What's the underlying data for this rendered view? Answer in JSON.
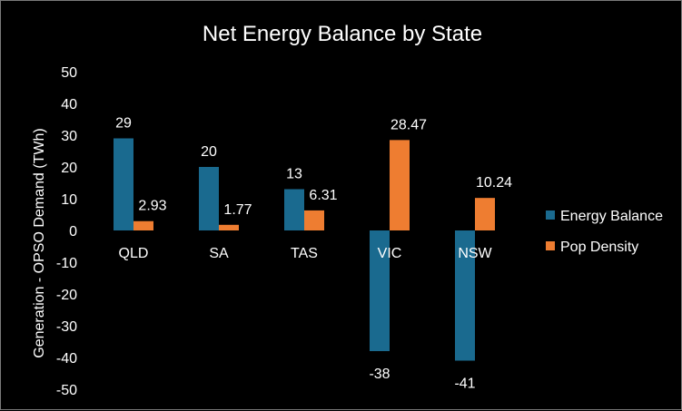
{
  "chart_data": {
    "type": "bar",
    "title": "Net Energy Balance by State",
    "xlabel": "",
    "ylabel": "Generation - OPSO Demand (TWh)",
    "categories": [
      "QLD",
      "SA",
      "TAS",
      "VIC",
      "NSW"
    ],
    "series": [
      {
        "name": "Energy Balance",
        "color": "#1a6a8f",
        "values": [
          29,
          20,
          13,
          -38,
          -41
        ],
        "labels": [
          "29",
          "20",
          "13",
          "-38",
          "-41"
        ]
      },
      {
        "name": "Pop Density",
        "color": "#ee7d31",
        "values": [
          2.93,
          1.77,
          6.31,
          28.47,
          10.24
        ],
        "labels": [
          "2.93",
          "1.77",
          "6.31",
          "28.47",
          "10.24"
        ]
      }
    ],
    "ylim": [
      -50,
      50
    ],
    "yticks": [
      "50",
      "40",
      "30",
      "20",
      "10",
      "0",
      "-10",
      "-20",
      "-30",
      "-40",
      "-50"
    ],
    "ytick_values": [
      50,
      40,
      30,
      20,
      10,
      0,
      -10,
      -20,
      -30,
      -40,
      -50
    ],
    "grid": false,
    "legend_position": "right"
  }
}
